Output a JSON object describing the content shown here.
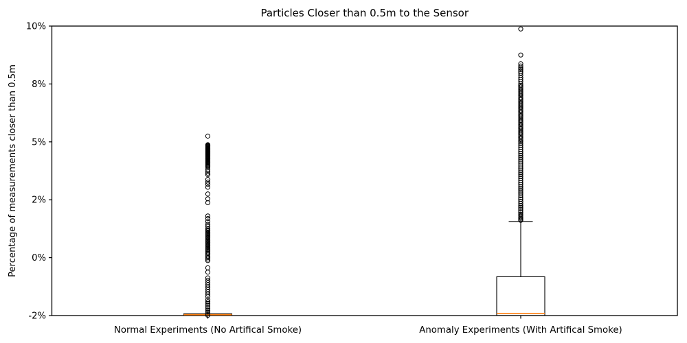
{
  "chart_data": {
    "type": "boxplot",
    "title": "Particles Closer than 0.5m to the Sensor",
    "ylabel": "Percentage of measurements closer than 0.5m",
    "xlabel": "",
    "categories": [
      "Normal Experiments (No Artifical Smoke)",
      "Anomaly Experiments (With Artifical Smoke)"
    ],
    "ytick_values": [
      10,
      8,
      5,
      2,
      0,
      -2
    ],
    "ytick_labels": [
      "10%",
      "8%",
      "5%",
      "2%",
      "0%",
      "-2%"
    ],
    "scale_note": "y ticks are evenly spaced in pixels; values interpolate piecewise-linearly between tick stops",
    "grid": "off",
    "legend": "none",
    "colors": {
      "box_edge": "#000000",
      "median": "#ff7f0e",
      "whisker": "#000000",
      "outlier_edge": "#000000",
      "background": "#ffffff",
      "text": "#000000"
    },
    "boxes": [
      {
        "category": "Normal Experiments (No Artifical Smoke)",
        "q1": -2.0,
        "median": -1.97,
        "q3": -1.94,
        "whisker_low": -2.0,
        "whisker_high": -1.94,
        "outliers": [
          5.3,
          4.85,
          4.82,
          4.79,
          4.76,
          4.73,
          4.7,
          4.67,
          4.64,
          4.61,
          4.58,
          4.55,
          4.52,
          4.49,
          4.46,
          4.43,
          4.4,
          4.37,
          4.34,
          4.31,
          4.28,
          4.25,
          4.22,
          4.19,
          4.16,
          4.13,
          4.1,
          4.06,
          4.02,
          3.98,
          3.94,
          3.9,
          3.86,
          3.82,
          3.78,
          3.74,
          3.7,
          3.58,
          3.47,
          3.38,
          3.3,
          3.05,
          2.92,
          2.8,
          2.65,
          2.3,
          2.05,
          1.9,
          1.44,
          1.35,
          1.25,
          1.15,
          1.08,
          1.0,
          0.96,
          0.92,
          0.88,
          0.84,
          0.8,
          0.76,
          0.72,
          0.68,
          0.64,
          0.6,
          0.56,
          0.52,
          0.48,
          0.44,
          0.4,
          0.36,
          0.32,
          0.28,
          0.24,
          0.2,
          0.15,
          0.1,
          0.05,
          0.0,
          -0.05,
          -0.1,
          -0.35,
          -0.5,
          -0.7,
          -0.78,
          -0.86,
          -0.94,
          -1.02,
          -1.1,
          -1.18,
          -1.26,
          -1.34,
          -1.45,
          -1.52,
          -1.58,
          -1.64,
          -1.7,
          -1.76,
          -1.82,
          -1.88,
          -1.94,
          -1.99
        ]
      },
      {
        "category": "Anomaly Experiments (With Artifical Smoke)",
        "q1": -2.0,
        "median": -1.93,
        "q3": -0.66,
        "whisker_low": -2.0,
        "whisker_high": 1.25,
        "outliers": [
          9.9,
          9.0,
          8.7,
          8.62,
          8.55,
          8.5,
          8.44,
          8.38,
          8.3,
          8.22,
          8.15,
          8.08,
          8.0,
          7.92,
          7.85,
          7.78,
          7.7,
          7.62,
          7.55,
          7.48,
          7.4,
          7.32,
          7.25,
          7.18,
          7.1,
          7.02,
          6.95,
          6.88,
          6.8,
          6.72,
          6.65,
          6.58,
          6.5,
          6.42,
          6.35,
          6.28,
          6.2,
          6.12,
          6.05,
          5.98,
          5.9,
          5.82,
          5.75,
          5.68,
          5.6,
          5.52,
          5.45,
          5.38,
          5.3,
          5.22,
          5.15,
          5.08,
          5.0,
          4.9,
          4.8,
          4.7,
          4.6,
          4.5,
          4.4,
          4.3,
          4.2,
          4.1,
          4.0,
          3.9,
          3.8,
          3.7,
          3.6,
          3.5,
          3.4,
          3.3,
          3.2,
          3.1,
          3.0,
          2.9,
          2.8,
          2.7,
          2.6,
          2.5,
          2.4,
          2.3,
          2.2,
          2.1,
          2.02,
          1.94,
          1.87,
          1.8,
          1.74,
          1.68,
          1.62,
          1.56,
          1.5,
          1.45,
          1.4,
          1.36,
          1.32,
          1.29
        ]
      }
    ]
  }
}
